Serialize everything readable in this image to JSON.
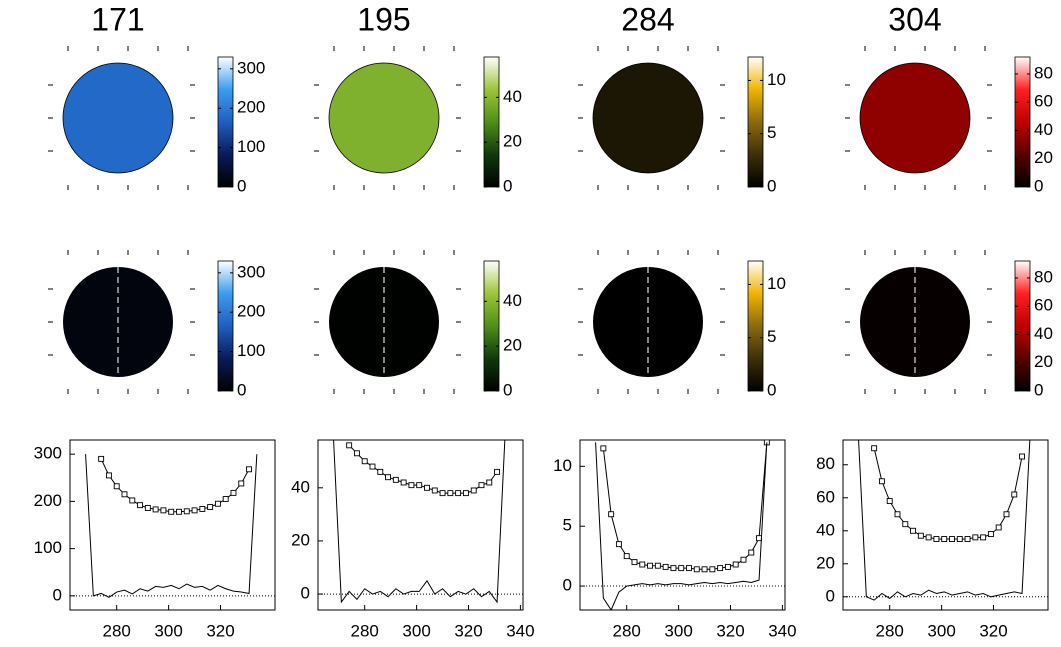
{
  "chart_data": [
    {
      "type": "line",
      "title": "171",
      "colormap": [
        "#000000",
        "#0a1a5a",
        "#1f5fc0",
        "#3b9cf0",
        "#ffffff"
      ],
      "clim": [
        0,
        330
      ],
      "cticks": [
        0,
        100,
        200,
        300
      ],
      "xlim": [
        262,
        341
      ],
      "xticks": [
        280,
        300,
        320
      ],
      "ylim": [
        -30,
        330
      ],
      "yticks": [
        0,
        100,
        200,
        300
      ],
      "x": [
        268,
        271,
        274,
        277,
        280,
        283,
        286,
        289,
        292,
        295,
        298,
        301,
        304,
        307,
        310,
        313,
        316,
        319,
        322,
        325,
        328,
        331,
        334
      ],
      "series": [
        {
          "color": "#000000",
          "marker": "square",
          "values": [
            null,
            null,
            290,
            255,
            232,
            215,
            202,
            192,
            186,
            183,
            181,
            178,
            178,
            179,
            181,
            184,
            188,
            195,
            205,
            218,
            238,
            268,
            null
          ]
        },
        {
          "color": "#000000",
          "values": [
            300,
            0,
            5,
            -3,
            8,
            12,
            4,
            15,
            10,
            20,
            18,
            22,
            15,
            25,
            18,
            20,
            12,
            22,
            15,
            10,
            8,
            5,
            300
          ]
        }
      ]
    },
    {
      "type": "line",
      "title": "195",
      "colormap": [
        "#000000",
        "#0f3a0a",
        "#4f8f1a",
        "#9cc53a",
        "#ffffff"
      ],
      "clim": [
        0,
        58
      ],
      "cticks": [
        0,
        20,
        40
      ],
      "xlim": [
        262,
        341
      ],
      "xticks": [
        280,
        300,
        320,
        340
      ],
      "ylim": [
        -6,
        58
      ],
      "yticks": [
        0,
        20,
        40
      ],
      "x": [
        268,
        271,
        274,
        277,
        280,
        283,
        286,
        289,
        292,
        295,
        298,
        301,
        304,
        307,
        310,
        313,
        316,
        319,
        322,
        325,
        328,
        331,
        334
      ],
      "series": [
        {
          "color": "#000000",
          "marker": "square",
          "values": [
            null,
            null,
            56,
            53,
            50,
            48,
            46,
            44,
            43,
            42,
            41,
            41,
            40,
            39,
            38,
            38,
            38,
            38,
            39,
            41,
            42,
            46,
            null
          ]
        },
        {
          "color": "#000000",
          "values": [
            58,
            -3,
            1,
            -2,
            2,
            0,
            1,
            -1,
            2,
            0,
            1,
            1,
            5,
            0,
            2,
            -1,
            1,
            0,
            2,
            -1,
            1,
            -3,
            58
          ]
        }
      ]
    },
    {
      "type": "line",
      "title": "284",
      "colormap": [
        "#000000",
        "#3d3008",
        "#8a6a10",
        "#f0b400",
        "#ffffff"
      ],
      "clim": [
        0,
        12.2
      ],
      "cticks": [
        0,
        5,
        10
      ],
      "xlim": [
        262,
        341
      ],
      "xticks": [
        280,
        300,
        320,
        340
      ],
      "ylim": [
        -2,
        12.2
      ],
      "yticks": [
        0,
        5,
        10
      ],
      "x": [
        268,
        271,
        274,
        277,
        280,
        283,
        286,
        289,
        292,
        295,
        298,
        301,
        304,
        307,
        310,
        313,
        316,
        319,
        322,
        325,
        328,
        331,
        334
      ],
      "series": [
        {
          "color": "#000000",
          "marker": "square",
          "values": [
            null,
            11.5,
            6,
            3.5,
            2.5,
            2,
            1.8,
            1.7,
            1.7,
            1.6,
            1.5,
            1.5,
            1.5,
            1.4,
            1.4,
            1.4,
            1.5,
            1.6,
            1.8,
            2.2,
            2.8,
            4,
            12
          ]
        },
        {
          "color": "#000000",
          "values": [
            12,
            -1,
            -2,
            -0.5,
            0,
            0.1,
            0.2,
            0.1,
            0.2,
            0.1,
            0.2,
            0.2,
            0.1,
            0.2,
            0.3,
            0.2,
            0.3,
            0.2,
            0.3,
            0.4,
            0.3,
            0.5,
            12
          ]
        }
      ]
    },
    {
      "type": "line",
      "title": "304",
      "colormap": [
        "#000000",
        "#5a0000",
        "#c00000",
        "#ff2020",
        "#ffffff"
      ],
      "clim": [
        0,
        92
      ],
      "cticks": [
        0,
        20,
        40,
        60,
        80
      ],
      "xlim": [
        262,
        341
      ],
      "xticks": [
        280,
        300,
        320
      ],
      "ylim": [
        -8,
        95
      ],
      "yticks": [
        0,
        20,
        40,
        60,
        80
      ],
      "x": [
        268,
        271,
        274,
        277,
        280,
        283,
        286,
        289,
        292,
        295,
        298,
        301,
        304,
        307,
        310,
        313,
        316,
        319,
        322,
        325,
        328,
        331,
        334
      ],
      "series": [
        {
          "color": "#000000",
          "marker": "square",
          "values": [
            null,
            null,
            90,
            70,
            58,
            50,
            44,
            40,
            37,
            36,
            35,
            35,
            35,
            35,
            35,
            36,
            36,
            38,
            42,
            50,
            62,
            85,
            null
          ]
        },
        {
          "color": "#000000",
          "values": [
            95,
            0,
            -2,
            2,
            -1,
            3,
            0,
            2,
            1,
            4,
            2,
            3,
            1,
            2,
            3,
            1,
            2,
            0,
            1,
            2,
            3,
            2,
            95
          ]
        }
      ]
    }
  ]
}
